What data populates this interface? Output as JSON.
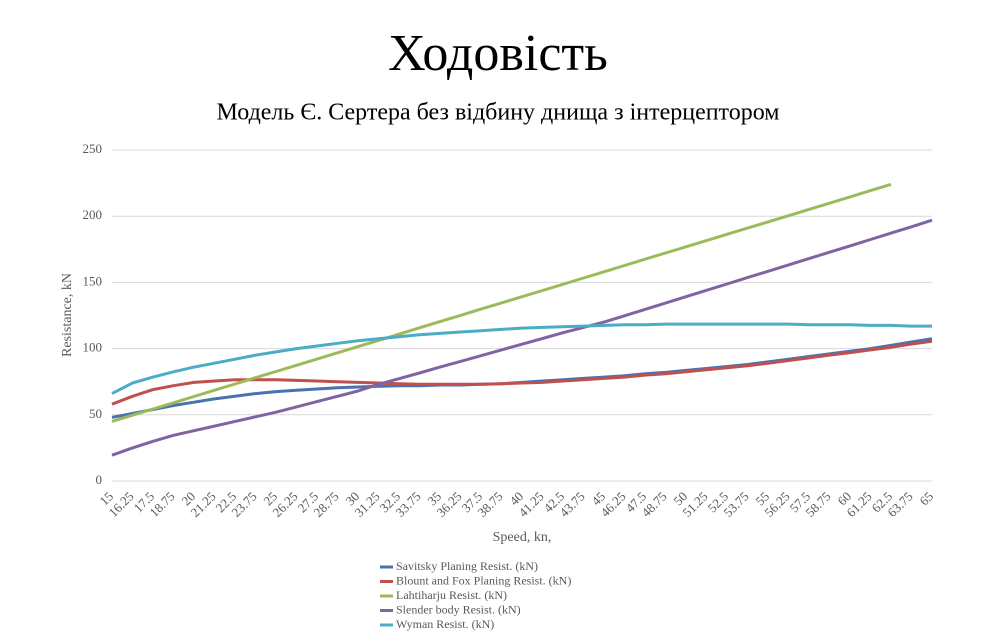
{
  "chart_data": {
    "type": "line",
    "title": "Ходовість",
    "subtitle": "Модель Є. Сертера без відбину днища з інтерцептором",
    "x_label": "Speed, kn,",
    "y_label": "Resistance, kN",
    "categories": [
      "15",
      "16.25",
      "17.5",
      "18.75",
      "20",
      "21.25",
      "22.5",
      "23.75",
      "25",
      "26.25",
      "27.5",
      "28.75",
      "30",
      "31.25",
      "32.5",
      "33.75",
      "35",
      "36.25",
      "37.5",
      "38.75",
      "40",
      "41.25",
      "42.5",
      "43.75",
      "45",
      "46.25",
      "47.5",
      "48.75",
      "50",
      "51.25",
      "52.5",
      "53.75",
      "55",
      "56.25",
      "57.5",
      "58.75",
      "60",
      "61.25",
      "62.5",
      "63.75",
      "65"
    ],
    "ylim": [
      0,
      250
    ],
    "yticks": [
      0,
      50,
      100,
      150,
      200,
      250
    ],
    "grid": true,
    "legend": "bottom",
    "series": [
      {
        "name": "Savitsky Planing Resist. (kN)",
        "color": "#4a72b0",
        "values": [
          48,
          51,
          54,
          57,
          59.5,
          62,
          64,
          66,
          67.5,
          68.5,
          69.5,
          70.5,
          71,
          71.5,
          72,
          72,
          72.5,
          72.5,
          73,
          73.5,
          74.5,
          75.5,
          76.5,
          77.5,
          78.5,
          79.5,
          81,
          82,
          83.5,
          85,
          86.5,
          88,
          90,
          92,
          94,
          96,
          98,
          100,
          102.5,
          105,
          107.5
        ]
      },
      {
        "name": "Blount and Fox Planing Resist. (kN)",
        "color": "#c0504d",
        "values": [
          58,
          64,
          69,
          72,
          74.5,
          75.5,
          76.5,
          76.5,
          76.5,
          76,
          75.5,
          75,
          74.5,
          74,
          73.5,
          73,
          73,
          73,
          73,
          73.5,
          74,
          74.5,
          75.5,
          76.5,
          77.5,
          78.5,
          80,
          81,
          82.5,
          84,
          85.5,
          87,
          89,
          91,
          93,
          95,
          97,
          99,
          101,
          103.5,
          105.5
        ]
      },
      {
        "name": "Lahtiharju Resist. (kN)",
        "color": "#9bbb59",
        "values": [
          45,
          49.7,
          54.4,
          59.1,
          63.8,
          68.6,
          73.3,
          78,
          82.7,
          87.4,
          92.1,
          96.8,
          101.5,
          106.2,
          110.9,
          115.7,
          120.4,
          125.1,
          129.8,
          134.5,
          139.2,
          143.9,
          148.6,
          153.3,
          158,
          162.8,
          167.5,
          172.2,
          176.9,
          181.6,
          186.3,
          191,
          195.7,
          200.4,
          205.1,
          209.8,
          214.6,
          219.3,
          224,
          null,
          null
        ]
      },
      {
        "name": "Slender body Resist. (kN)",
        "color": "#8064a2",
        "values": [
          19.5,
          25,
          30,
          34.5,
          38,
          41.5,
          45,
          48.5,
          52,
          56,
          60,
          64,
          68,
          73,
          77.3,
          81.6,
          86,
          90.3,
          94.6,
          99,
          103.3,
          107.6,
          112,
          116,
          120,
          124.8,
          129.6,
          134.4,
          139.2,
          144,
          148.8,
          153.6,
          158.4,
          163.2,
          168,
          172.8,
          177.6,
          182.4,
          187.2,
          192,
          197
        ]
      },
      {
        "name": "Wyman Resist. (kN)",
        "color": "#4bacc6",
        "values": [
          66,
          74,
          78.5,
          82.5,
          86,
          89,
          92,
          95,
          97.5,
          100,
          102,
          104,
          106,
          107.5,
          109,
          110.5,
          111.5,
          112.5,
          113.5,
          114.5,
          115.5,
          116,
          116.5,
          117,
          117.5,
          118,
          118,
          118.5,
          118.5,
          118.5,
          118.5,
          118.5,
          118.5,
          118.5,
          118,
          118,
          118,
          117.5,
          117.5,
          117,
          117
        ]
      }
    ]
  }
}
